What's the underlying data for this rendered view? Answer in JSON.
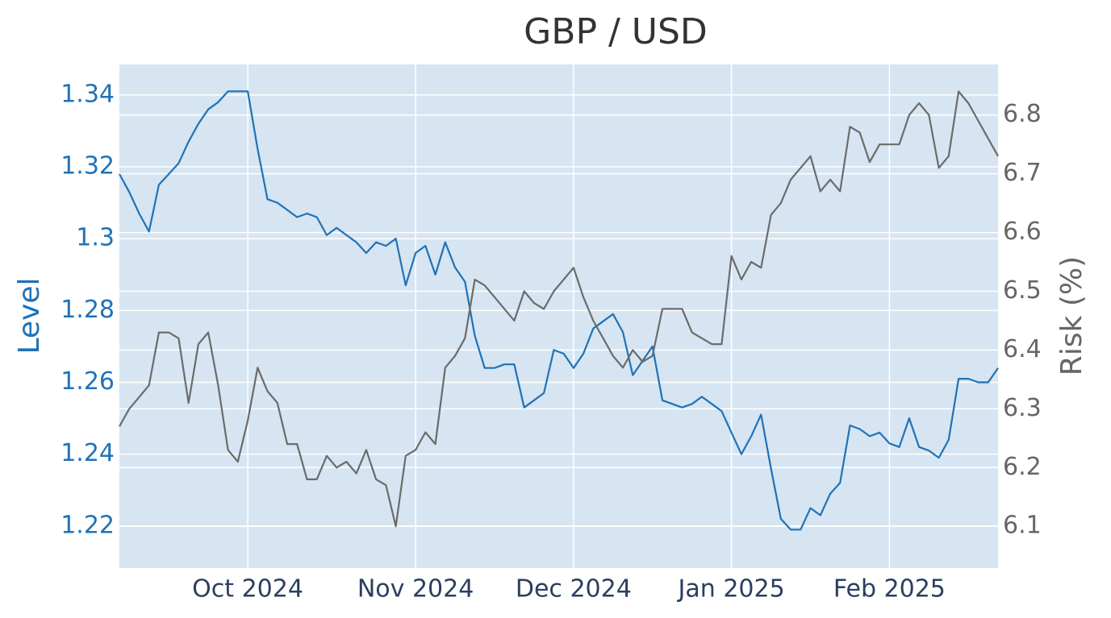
{
  "chart_data": {
    "type": "line",
    "title": "GBP / USD",
    "y_label": "Level",
    "y2_label": "Risk (%)",
    "categories": [
      null,
      null,
      null,
      null,
      null,
      null,
      null,
      null,
      null,
      null,
      null,
      null,
      null,
      "Oct 2024",
      null,
      null,
      null,
      null,
      null,
      null,
      null,
      null,
      null,
      null,
      null,
      null,
      null,
      null,
      null,
      null,
      "Nov 2024",
      null,
      null,
      null,
      null,
      null,
      null,
      null,
      null,
      null,
      null,
      null,
      null,
      null,
      null,
      null,
      "Dec 2024",
      null,
      null,
      null,
      null,
      null,
      null,
      null,
      null,
      null,
      null,
      null,
      null,
      null,
      null,
      null,
      "Jan 2025",
      null,
      null,
      null,
      null,
      null,
      null,
      null,
      null,
      null,
      null,
      null,
      null,
      null,
      null,
      null,
      "Feb 2025",
      null,
      null,
      null,
      null,
      null,
      null,
      null,
      null,
      null,
      null,
      null
    ],
    "series": [
      {
        "color": "#1f72b8",
        "axis": "y",
        "values": [
          1.318,
          1.313,
          1.307,
          1.302,
          1.315,
          1.318,
          1.321,
          1.327,
          1.332,
          1.336,
          1.338,
          1.341,
          1.341,
          1.341,
          1.325,
          1.311,
          1.31,
          1.308,
          1.306,
          1.307,
          1.306,
          1.301,
          1.303,
          1.301,
          1.299,
          1.296,
          1.299,
          1.298,
          1.3,
          1.287,
          1.296,
          1.298,
          1.29,
          1.299,
          1.292,
          1.288,
          1.273,
          1.264,
          1.264,
          1.265,
          1.265,
          1.253,
          1.255,
          1.257,
          1.269,
          1.268,
          1.264,
          1.268,
          1.275,
          1.277,
          1.279,
          1.274,
          1.262,
          1.266,
          1.27,
          1.255,
          1.254,
          1.253,
          1.254,
          1.256,
          1.254,
          1.252,
          1.246,
          1.24,
          1.245,
          1.251,
          1.236,
          1.222,
          1.219,
          1.219,
          1.225,
          1.223,
          1.229,
          1.232,
          1.248,
          1.247,
          1.245,
          1.246,
          1.243,
          1.242,
          1.25,
          1.242,
          1.241,
          1.239,
          1.244,
          1.261,
          1.261,
          1.26,
          1.26,
          1.264
        ]
      },
      {
        "color": "#6b6b6b",
        "axis": "y2",
        "values": [
          6.27,
          6.3,
          6.32,
          6.34,
          6.43,
          6.43,
          6.42,
          6.31,
          6.41,
          6.43,
          6.34,
          6.23,
          6.21,
          6.28,
          6.37,
          6.33,
          6.31,
          6.24,
          6.24,
          6.18,
          6.18,
          6.22,
          6.2,
          6.21,
          6.19,
          6.23,
          6.18,
          6.17,
          6.1,
          6.22,
          6.23,
          6.26,
          6.24,
          6.37,
          6.39,
          6.42,
          6.52,
          6.51,
          6.49,
          6.47,
          6.45,
          6.5,
          6.48,
          6.47,
          6.5,
          6.52,
          6.54,
          6.49,
          6.45,
          6.42,
          6.39,
          6.37,
          6.4,
          6.38,
          6.39,
          6.47,
          6.47,
          6.47,
          6.43,
          6.42,
          6.41,
          6.41,
          6.56,
          6.52,
          6.55,
          6.54,
          6.63,
          6.65,
          6.69,
          6.71,
          6.73,
          6.67,
          6.69,
          6.67,
          6.78,
          6.77,
          6.72,
          6.75,
          6.75,
          6.75,
          6.8,
          6.82,
          6.8,
          6.71,
          6.73,
          6.84,
          6.82,
          6.79,
          6.76,
          6.73
        ]
      }
    ],
    "ylim": [
      1.2083,
      1.3485
    ],
    "yticks": [
      1.22,
      1.24,
      1.26,
      1.28,
      1.3,
      1.32,
      1.34
    ],
    "y2lim": [
      6.029,
      6.886
    ],
    "y2ticks": [
      6.1,
      6.2,
      6.3,
      6.4,
      6.5,
      6.6,
      6.7,
      6.8
    ],
    "grid": true,
    "y_color": "#1f72b8",
    "y2_color": "#666666"
  }
}
